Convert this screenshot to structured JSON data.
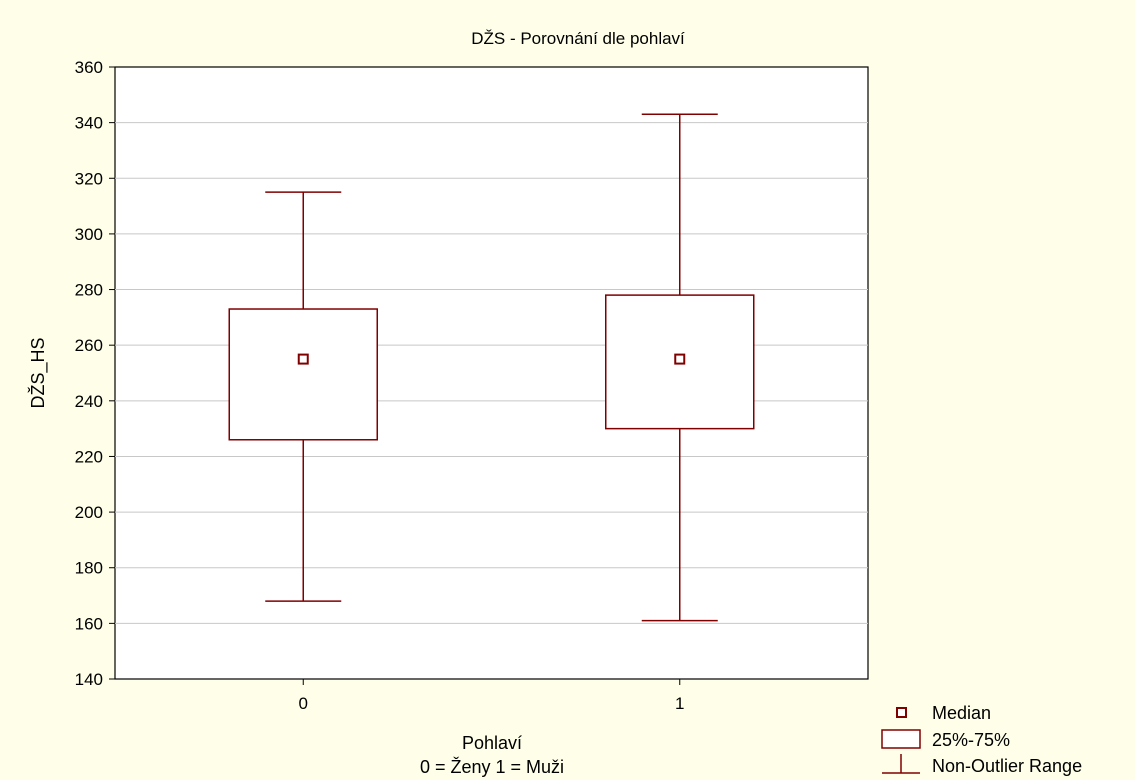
{
  "chart_data": {
    "type": "box",
    "title": "DŽS - Porovnání dle pohlaví",
    "xlabel": "Pohlaví",
    "xlabel_sub": "0 = Ženy 1 = Muži",
    "ylabel": "DŽS_HS",
    "ylim": [
      140,
      360
    ],
    "yticks": [
      140,
      160,
      180,
      200,
      220,
      240,
      260,
      280,
      300,
      320,
      340,
      360
    ],
    "categories": [
      "0",
      "1"
    ],
    "grid": true,
    "boxes": [
      {
        "category": "0",
        "min": 168,
        "q1": 226,
        "median": 255,
        "q3": 273,
        "max": 315
      },
      {
        "category": "1",
        "min": 161,
        "q1": 230,
        "median": 255,
        "q3": 278,
        "max": 343
      }
    ],
    "legend": {
      "position": "bottom-right",
      "entries": [
        "Median",
        "25%-75%",
        "Non-Outlier Range"
      ]
    },
    "colors": {
      "box": "#800000",
      "grid": "#c8c8c8",
      "background": "#fefee9",
      "plot_bg": "#ffffff"
    }
  }
}
